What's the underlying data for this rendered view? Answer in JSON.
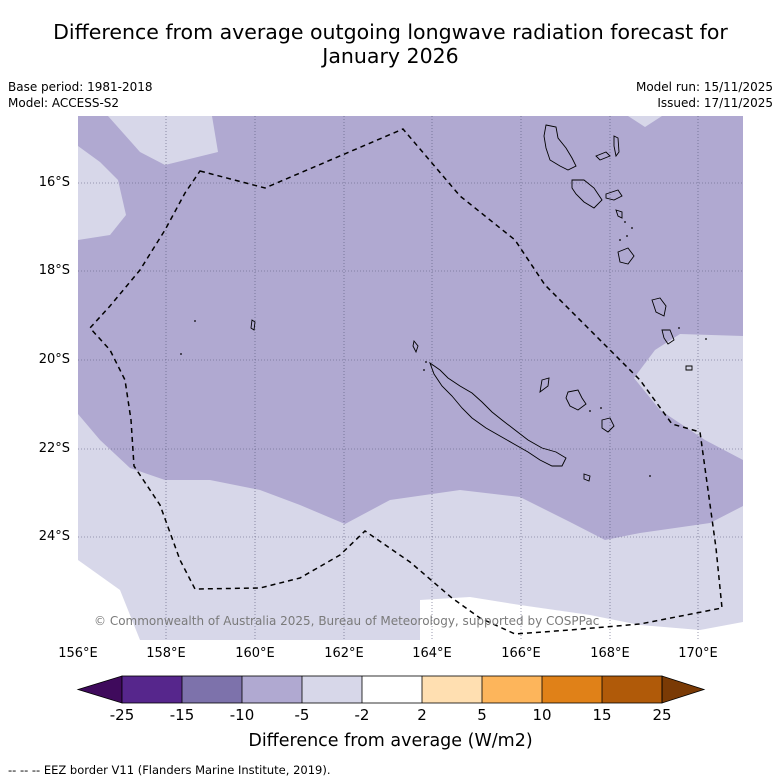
{
  "title": {
    "line1": "Difference from average outgoing longwave radiation forecast for",
    "line2": "January 2026"
  },
  "meta": {
    "base_period": "Base period: 1981-2018",
    "model": "Model: ACCESS-S2",
    "model_run": "Model run: 15/11/2025",
    "issued": "Issued: 17/11/2025"
  },
  "map": {
    "latitude_labels": [
      "16°S",
      "18°S",
      "20°S",
      "22°S",
      "24°S"
    ],
    "longitude_labels": [
      "156°E",
      "158°E",
      "160°E",
      "162°E",
      "164°E",
      "166°E",
      "168°E",
      "170°E"
    ],
    "copyright": "© Commonwealth of Australia 2025, Bureau of Meteorology, supported by COSPPac",
    "colors": {
      "minus5_to_minus2": "#d7d7e9",
      "minus10_to_minus5": "#b0a9d1",
      "ocean_neutral": "#ffffff",
      "eez_line": "#000000",
      "grid": "#555577"
    }
  },
  "colorbar": {
    "ticks": [
      "-25",
      "-15",
      "-10",
      "-5",
      "-2",
      "2",
      "5",
      "10",
      "15",
      "25"
    ],
    "colors": [
      "#3f0a5c",
      "#56268c",
      "#7d72ab",
      "#b0a9d1",
      "#d7d7e9",
      "#ffffff",
      "#ffdfb1",
      "#fdb55b",
      "#e08118",
      "#b05a09",
      "#7a3a05"
    ],
    "label": "Difference from average (W/m2)"
  },
  "footer": {
    "legend_text": "--  --  -- EEZ border V11 (Flanders Marine Institute, 2019)."
  }
}
